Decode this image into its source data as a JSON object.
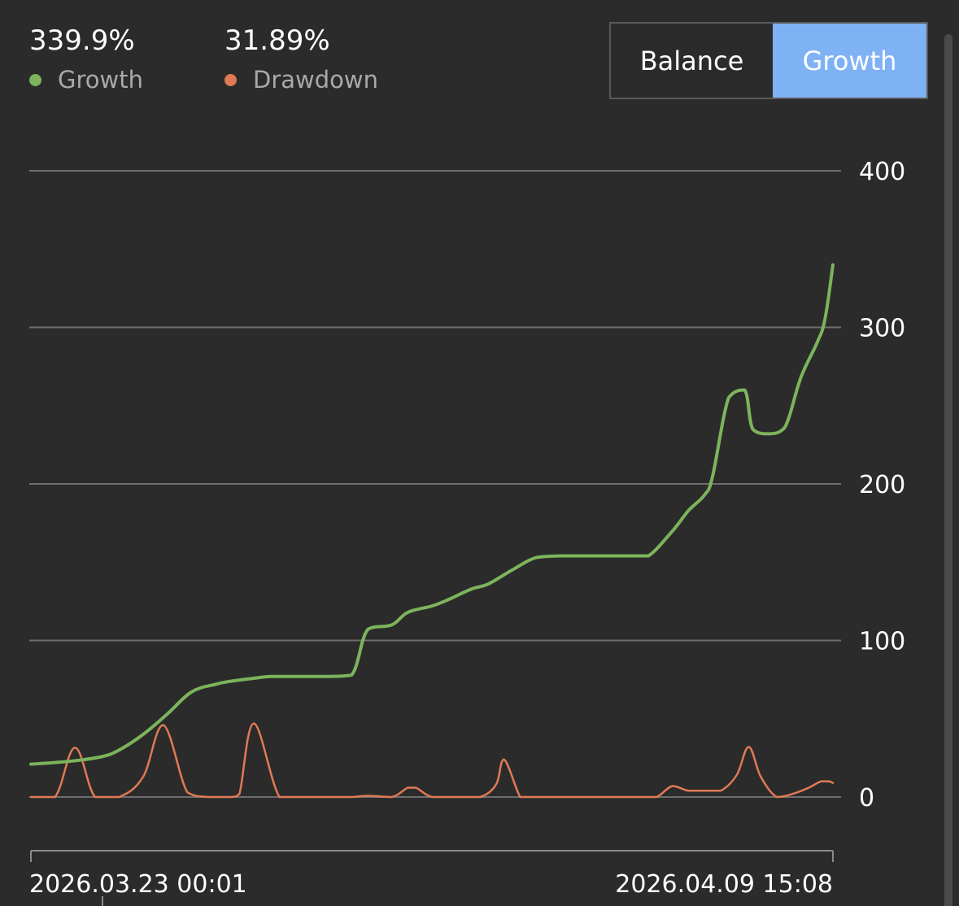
{
  "stats": {
    "growth": {
      "value": "339.9%",
      "label": "Growth",
      "color": "#7cb45c"
    },
    "drawdown": {
      "value": "31.89%",
      "label": "Drawdown",
      "color": "#e07a55"
    }
  },
  "toggle": {
    "balance_label": "Balance",
    "growth_label": "Growth",
    "active": "Growth",
    "active_color": "#7fb1f5"
  },
  "chart_data": {
    "type": "line",
    "x_labels": [
      "2026.03.23 00:01",
      "2026.04.09 15:08"
    ],
    "y_ticks": [
      0,
      100,
      200,
      300,
      400
    ],
    "ylim": [
      -33,
      400
    ],
    "grid": true,
    "x_range": [
      0,
      100
    ],
    "series": [
      {
        "name": "Growth",
        "color": "#7cb45c",
        "x": [
          0,
          3,
          6,
          9,
          11,
          14,
          17,
          20,
          23,
          25,
          28,
          30,
          34,
          37,
          40,
          42,
          45,
          47,
          50,
          52,
          55,
          57,
          60,
          63,
          66,
          69,
          72,
          75,
          77,
          80,
          82,
          84,
          85,
          87,
          89,
          90,
          92,
          94,
          96,
          98,
          99,
          100
        ],
        "y": [
          21,
          22,
          23.5,
          26,
          30,
          40,
          53,
          67,
          72,
          74,
          76,
          77,
          77,
          77,
          78,
          107,
          110,
          118,
          122,
          126,
          133,
          136,
          145,
          153,
          154,
          154,
          154,
          154,
          154,
          170,
          183,
          193,
          205,
          255,
          260,
          235,
          232,
          236,
          268,
          290,
          305,
          339.9
        ]
      },
      {
        "name": "Drawdown",
        "color": "#e07a55",
        "x": [
          0,
          3,
          5.5,
          8,
          11,
          14,
          16.5,
          19.5,
          22,
          25,
          26,
          27.8,
          31,
          34,
          38,
          40,
          42,
          45,
          47,
          48,
          50,
          53,
          56,
          58,
          59,
          61,
          62,
          64,
          66,
          70,
          74,
          76,
          78,
          80,
          82,
          84,
          86,
          88,
          89.5,
          91,
          93,
          95,
          97,
          98.5,
          99.5,
          100
        ],
        "y": [
          0,
          0,
          31.5,
          0,
          0,
          13,
          46,
          3,
          0,
          0,
          2,
          47,
          0,
          0,
          0,
          0,
          0.8,
          0,
          6,
          6,
          0,
          0,
          0,
          8,
          24,
          0,
          0,
          0,
          0,
          0,
          0,
          0,
          0,
          7,
          4,
          4,
          4,
          14,
          32,
          13,
          0,
          2,
          6,
          10,
          10,
          9
        ]
      }
    ]
  }
}
